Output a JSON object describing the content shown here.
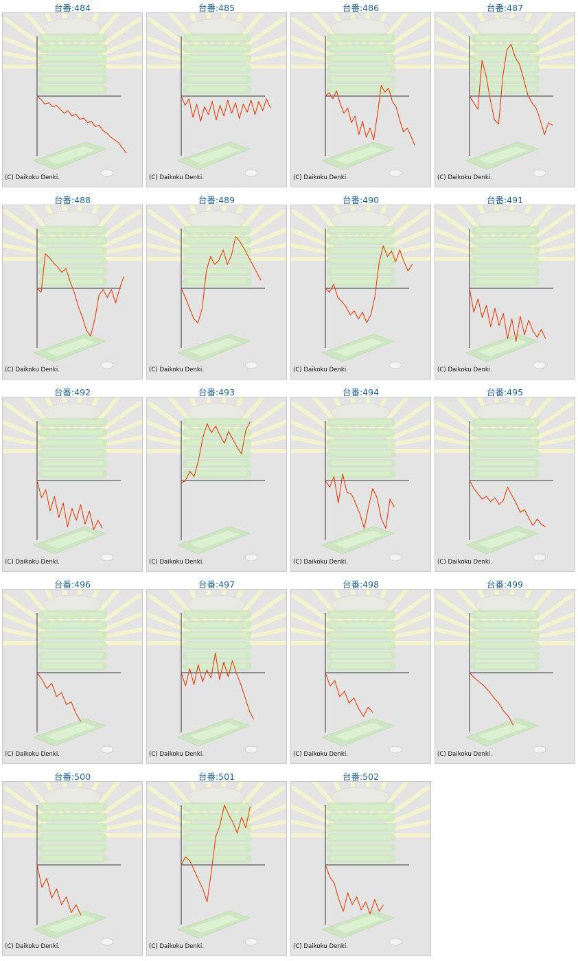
{
  "colors": {
    "title": "#1f5f8a",
    "panel_background": "#e4e4e4",
    "panel_border": "#c8c8c8",
    "series_line": "#e8400a",
    "axis": "#333333",
    "watermark_green": "#c7e6b8",
    "watermark_rays": "#f4f3cf"
  },
  "watermark_icon": "slot-machine-reels-icon",
  "charts": [
    {
      "title": "台番:484",
      "copyright": "(C) Daikoku Denki.",
      "chart_data": {
        "type": "line",
        "axes_labels_printed": false,
        "values": [
          0,
          -5,
          -12,
          -10,
          -16,
          -14,
          -20,
          -26,
          -22,
          -30,
          -27,
          -35,
          -33,
          -40,
          -38,
          -46,
          -44,
          -52,
          -56,
          -62,
          -66,
          -70,
          -78,
          -86
        ]
      }
    },
    {
      "title": "台番:485",
      "copyright": "(C) Daikoku Denki.",
      "chart_data": {
        "type": "line",
        "axes_labels_printed": false,
        "values": [
          0,
          -14,
          -4,
          -32,
          -12,
          -38,
          -16,
          -28,
          -8,
          -36,
          -14,
          -30,
          -6,
          -26,
          -10,
          -34,
          -12,
          -24,
          -6,
          -28,
          -8,
          -22,
          -4,
          -18
        ]
      }
    },
    {
      "title": "台番:486",
      "copyright": "(C) Daikoku Denki.",
      "chart_data": {
        "type": "line",
        "axes_labels_printed": false,
        "values": [
          0,
          5,
          -4,
          8,
          -12,
          -26,
          -18,
          -40,
          -30,
          -58,
          -38,
          -62,
          -48,
          -66,
          -28,
          16,
          6,
          12,
          -8,
          -16,
          -36,
          -54,
          -48,
          -60,
          -74
        ]
      }
    },
    {
      "title": "台番:487",
      "copyright": "(C) Daikoku Denki.",
      "chart_data": {
        "type": "line",
        "axes_labels_printed": false,
        "values": [
          0,
          -10,
          -20,
          54,
          30,
          -6,
          -36,
          -42,
          30,
          70,
          78,
          58,
          48,
          26,
          2,
          -10,
          -18,
          -36,
          -58,
          -40,
          -44
        ]
      }
    },
    {
      "title": "台番:488",
      "copyright": "(C) Daikoku Denki.",
      "chart_data": {
        "type": "line",
        "axes_labels_printed": false,
        "values": [
          0,
          -6,
          52,
          46,
          38,
          32,
          24,
          30,
          10,
          -6,
          -28,
          -44,
          -64,
          -72,
          -46,
          -10,
          -2,
          -14,
          -2,
          -22,
          0,
          18
        ]
      }
    },
    {
      "title": "台番:489",
      "copyright": "(C) Daikoku Denki.",
      "chart_data": {
        "type": "line",
        "axes_labels_printed": false,
        "values": [
          0,
          -14,
          -30,
          -46,
          -52,
          -30,
          26,
          48,
          36,
          42,
          58,
          36,
          50,
          78,
          70,
          60,
          48,
          36,
          24,
          12
        ]
      }
    },
    {
      "title": "台番:490",
      "copyright": "(C) Daikoku Denki.",
      "chart_data": {
        "type": "line",
        "axes_labels_printed": false,
        "values": [
          0,
          -6,
          6,
          -14,
          -20,
          -28,
          -40,
          -34,
          -46,
          -36,
          -52,
          -40,
          -12,
          38,
          64,
          48,
          56,
          40,
          58,
          40,
          26,
          36
        ]
      }
    },
    {
      "title": "台番:491",
      "copyright": "(C) Daikoku Denki.",
      "chart_data": {
        "type": "line",
        "axes_labels_printed": false,
        "values": [
          0,
          -36,
          -16,
          -44,
          -26,
          -58,
          -30,
          -56,
          -38,
          -76,
          -46,
          -80,
          -42,
          -70,
          -48,
          -64,
          -74,
          -62,
          -76
        ]
      }
    },
    {
      "title": "台番:492",
      "copyright": "(C) Daikoku Denki.",
      "chart_data": {
        "type": "line",
        "axes_labels_printed": false,
        "values": [
          0,
          -26,
          -14,
          -46,
          -24,
          -56,
          -34,
          -70,
          -42,
          -60,
          -36,
          -66,
          -46,
          -74,
          -60,
          -72
        ]
      }
    },
    {
      "title": "台番:493",
      "copyright": "(C) Daikoku Denki.",
      "chart_data": {
        "type": "line",
        "axes_labels_printed": false,
        "values": [
          -4,
          0,
          14,
          6,
          30,
          64,
          86,
          72,
          82,
          68,
          56,
          74,
          62,
          50,
          40,
          76,
          88
        ]
      }
    },
    {
      "title": "台番:494",
      "copyright": "(C) Daikoku Denki.",
      "chart_data": {
        "type": "line",
        "axes_labels_printed": false,
        "values": [
          0,
          -10,
          6,
          -34,
          10,
          -18,
          -20,
          -34,
          -50,
          -72,
          -40,
          -12,
          -26,
          -58,
          -72,
          -28,
          -40
        ]
      }
    },
    {
      "title": "台番:495",
      "copyright": "(C) Daikoku Denki.",
      "chart_data": {
        "type": "line",
        "axes_labels_printed": false,
        "values": [
          0,
          -12,
          -20,
          -28,
          -24,
          -32,
          -26,
          -36,
          -30,
          -10,
          -22,
          -34,
          -48,
          -44,
          -56,
          -68,
          -58,
          -66,
          -70
        ]
      }
    },
    {
      "title": "台番:496",
      "copyright": "(C) Daikoku Denki.",
      "chart_data": {
        "type": "line",
        "axes_labels_printed": false,
        "values": [
          0,
          -10,
          -24,
          -16,
          -36,
          -30,
          -48,
          -44,
          -62,
          -74
        ]
      }
    },
    {
      "title": "台番:497",
      "copyright": "(C) Daikoku Denki.",
      "chart_data": {
        "type": "line",
        "axes_labels_printed": false,
        "values": [
          0,
          -20,
          6,
          -18,
          12,
          -14,
          4,
          -8,
          30,
          -10,
          16,
          -6,
          18,
          -2,
          -18,
          -38,
          -58,
          -70
        ]
      }
    },
    {
      "title": "台番:498",
      "copyright": "(C) Daikoku Denki.",
      "chart_data": {
        "type": "line",
        "axes_labels_printed": false,
        "values": [
          0,
          -20,
          -12,
          -36,
          -28,
          -46,
          -38,
          -54,
          -66,
          -52,
          -60
        ]
      }
    },
    {
      "title": "台番:499",
      "copyright": "(C) Daikoku Denki.",
      "chart_data": {
        "type": "line",
        "axes_labels_printed": false,
        "values": [
          0,
          -8,
          -14,
          -20,
          -28,
          -38,
          -46,
          -58,
          -66,
          -80
        ]
      }
    },
    {
      "title": "台番:500",
      "copyright": "(C) Daikoku Denki.",
      "chart_data": {
        "type": "line",
        "axes_labels_printed": false,
        "values": [
          0,
          -34,
          -20,
          -50,
          -36,
          -60,
          -48,
          -72,
          -60,
          -76
        ]
      }
    },
    {
      "title": "台番:501",
      "copyright": "(C) Daikoku Denki.",
      "chart_data": {
        "type": "line",
        "axes_labels_printed": false,
        "values": [
          0,
          12,
          6,
          -8,
          -22,
          -36,
          -56,
          -10,
          42,
          60,
          90,
          76,
          64,
          48,
          72,
          56,
          88
        ]
      }
    },
    {
      "title": "台番:502",
      "copyright": "(C) Daikoku Denki.",
      "chart_data": {
        "type": "line",
        "axes_labels_printed": false,
        "values": [
          0,
          -18,
          -28,
          -52,
          -70,
          -42,
          -60,
          -48,
          -68,
          -56,
          -74,
          -52,
          -70,
          -60
        ]
      }
    }
  ]
}
